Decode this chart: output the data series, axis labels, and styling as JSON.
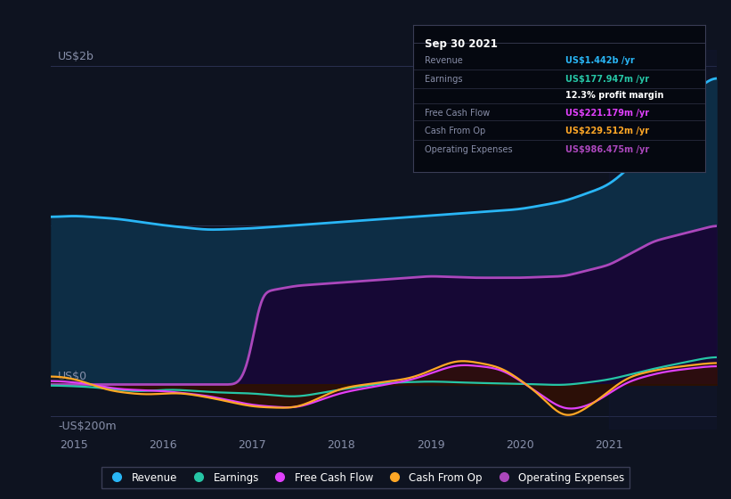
{
  "bg_color": "#0e1320",
  "plot_bg_color": "#0e1320",
  "grid_color": "#2a3050",
  "y_label_2b": "US$2b",
  "y_label_0": "US$0",
  "y_label_n200": "-US$200m",
  "x_ticks": [
    2015,
    2016,
    2017,
    2018,
    2019,
    2020,
    2021
  ],
  "ylim_min": -280000000,
  "ylim_max": 2100000000,
  "xlim_min": 2014.75,
  "xlim_max": 2022.2,
  "revenue_color": "#29b6f6",
  "earnings_color": "#26c6a6",
  "fcf_color": "#e040fb",
  "cashop_color": "#ffa726",
  "opex_color": "#ab47bc",
  "revenue_fill": "#0d2d45",
  "opex_fill": "#1a0a40",
  "fcf_fill_neg": "#400820",
  "fcf_fill_pos": "#400820",
  "cashop_fill": "#3a1a00",
  "info_box_bg": "#050810",
  "info_box_border": "#3a3d55",
  "info_date": "Sep 30 2021",
  "info_revenue_label": "Revenue",
  "info_revenue_value": "US$1.442b /yr",
  "info_revenue_color": "#29b6f6",
  "info_earnings_label": "Earnings",
  "info_earnings_value": "US$177.947m /yr",
  "info_earnings_color": "#26c6a6",
  "info_margin": "12.3% profit margin",
  "info_fcf_label": "Free Cash Flow",
  "info_fcf_value": "US$221.179m /yr",
  "info_fcf_color": "#e040fb",
  "info_cashop_label": "Cash From Op",
  "info_cashop_value": "US$229.512m /yr",
  "info_cashop_color": "#ffa726",
  "info_opex_label": "Operating Expenses",
  "info_opex_value": "US$986.475m /yr",
  "info_opex_color": "#ab47bc",
  "legend_items": [
    {
      "label": "Revenue",
      "color": "#29b6f6"
    },
    {
      "label": "Earnings",
      "color": "#26c6a6"
    },
    {
      "label": "Free Cash Flow",
      "color": "#e040fb"
    },
    {
      "label": "Cash From Op",
      "color": "#ffa726"
    },
    {
      "label": "Operating Expenses",
      "color": "#ab47bc"
    }
  ],
  "label_color": "#8890aa",
  "tick_color": "#8890aa"
}
